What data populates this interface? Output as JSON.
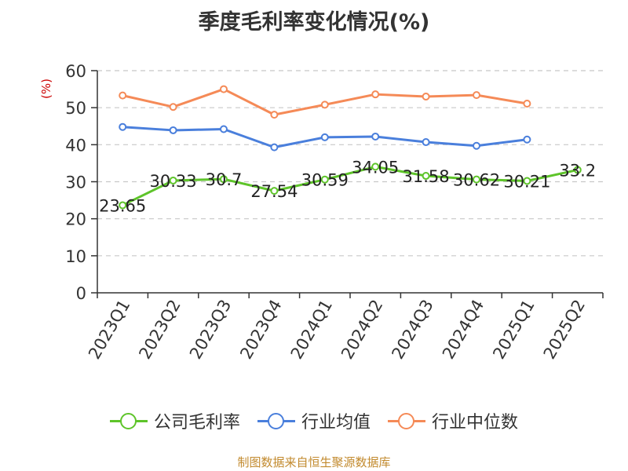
{
  "chart_data": {
    "type": "line",
    "title": "季度毛利率变化情况(%)",
    "ylabel": "(%)",
    "xlabel": "",
    "categories": [
      "2023Q1",
      "2023Q2",
      "2023Q3",
      "2023Q4",
      "2024Q1",
      "2024Q2",
      "2024Q3",
      "2024Q4",
      "2025Q1",
      "2025Q2"
    ],
    "ylim": [
      0,
      60
    ],
    "yticks": [
      0,
      10,
      20,
      30,
      40,
      50,
      60
    ],
    "grid": true,
    "legend_position": "bottom",
    "series": [
      {
        "name": "公司毛利率",
        "color": "#5ec42a",
        "values": [
          23.65,
          30.33,
          30.7,
          27.54,
          30.59,
          34.05,
          31.58,
          30.62,
          30.21,
          33.2
        ],
        "labels": [
          "23.65",
          "30.33",
          "30.7",
          "27.54",
          "30.59",
          "34.05",
          "31.58",
          "30.62",
          "30.21",
          "33.2"
        ]
      },
      {
        "name": "行业均值",
        "color": "#4a7fdc",
        "values": [
          44.8,
          43.9,
          44.2,
          39.3,
          42.0,
          42.2,
          40.7,
          39.7,
          41.4,
          null
        ]
      },
      {
        "name": "行业中位数",
        "color": "#f58a57",
        "values": [
          53.3,
          50.2,
          55.0,
          48.1,
          50.8,
          53.6,
          53.0,
          53.4,
          51.1,
          null
        ]
      }
    ]
  },
  "source": "制图数据来自恒生聚源数据库"
}
